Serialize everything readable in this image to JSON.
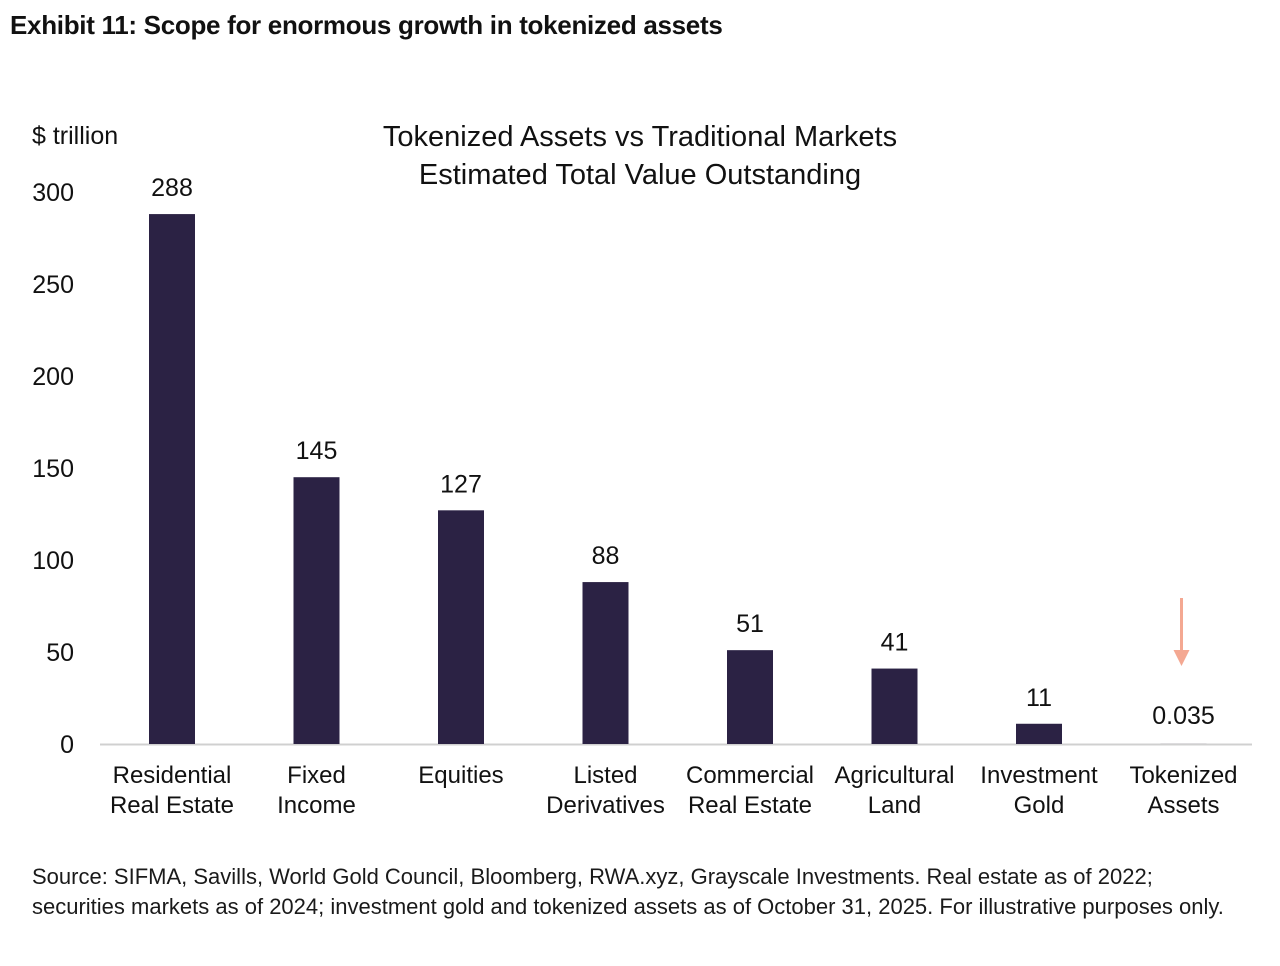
{
  "exhibit_title": "Exhibit 11: Scope for enormous growth in tokenized assets",
  "source_note": "Source: SIFMA, Savills, World Gold Council, Bloomberg, RWA.xyz, Grayscale Investments. Real estate as of 2022; securities markets as of 2024; investment gold and tokenized assets as of October 31, 2025. For illustrative purposes only.",
  "colors": {
    "bar": "#2b2244",
    "arrow": "#f4a892",
    "axis": "#d0d0d0"
  },
  "chart_data": {
    "type": "bar",
    "title": [
      "Tokenized Assets vs Traditional Markets",
      "Estimated Total Value Outstanding"
    ],
    "ylabel": "$ trillion",
    "xlabel": "",
    "ylim": [
      0,
      300
    ],
    "yticks": [
      0,
      50,
      100,
      150,
      200,
      250,
      300
    ],
    "grid": false,
    "categories": [
      [
        "Residential",
        "Real Estate"
      ],
      [
        "Fixed",
        "Income"
      ],
      [
        "Equities"
      ],
      [
        "Listed",
        "Derivatives"
      ],
      [
        "Commercial",
        "Real Estate"
      ],
      [
        "Agricultural",
        "Land"
      ],
      [
        "Investment",
        "Gold"
      ],
      [
        "Tokenized",
        "Assets"
      ]
    ],
    "values": [
      288,
      145,
      127,
      88,
      51,
      41,
      11,
      0.035
    ],
    "value_labels": [
      "288",
      "145",
      "127",
      "88",
      "51",
      "41",
      "11",
      "0.035"
    ],
    "annotations": [
      {
        "type": "arrow-down",
        "category_index": 7,
        "color": "#f4a892"
      }
    ]
  }
}
